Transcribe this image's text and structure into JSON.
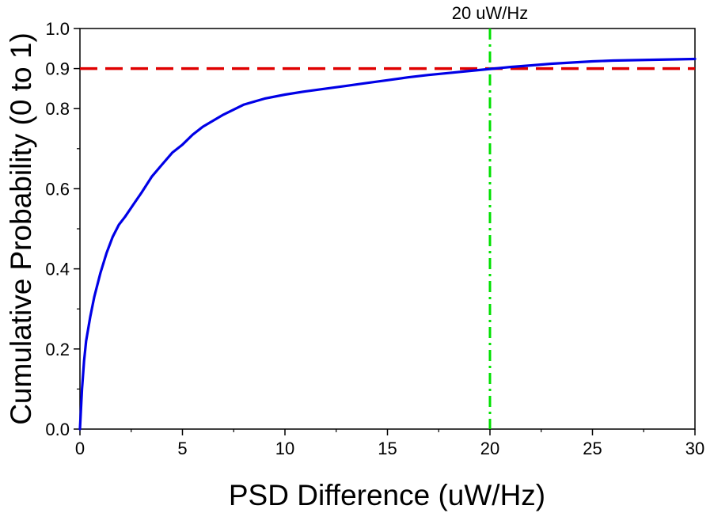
{
  "chart_data": {
    "type": "line",
    "title": "",
    "xlabel": "PSD Difference (uW/Hz)",
    "ylabel": "Cumulative Probability (0 to 1)",
    "xlim": [
      0,
      30
    ],
    "ylim": [
      0.0,
      1.0
    ],
    "x_ticks": [
      0,
      5,
      10,
      15,
      20,
      25,
      30
    ],
    "x_tick_labels": [
      "0",
      "5",
      "10",
      "15",
      "20",
      "25",
      "30"
    ],
    "y_ticks": [
      0.0,
      0.2,
      0.4,
      0.6,
      0.8,
      0.9,
      1.0
    ],
    "y_tick_labels": [
      "0.0",
      "0.2",
      "0.4",
      "0.6",
      "0.8",
      "0.9",
      "1.0"
    ],
    "grid": false,
    "series": [
      {
        "name": "Cumulative Probability",
        "color": "#0000e6",
        "x": [
          0,
          0.1,
          0.2,
          0.3,
          0.5,
          0.7,
          1.0,
          1.3,
          1.6,
          1.9,
          2.2,
          2.6,
          3.0,
          3.5,
          4.0,
          4.5,
          5.0,
          5.5,
          6.0,
          7.0,
          8.0,
          9.0,
          10.0,
          11.0,
          12.0,
          13.0,
          14.0,
          15.0,
          16.0,
          17.0,
          18.0,
          19.0,
          20.0,
          21.0,
          22.0,
          23.0,
          24.0,
          25.0,
          26.0,
          27.0,
          28.0,
          29.0,
          30.0
        ],
        "y": [
          0.0,
          0.1,
          0.17,
          0.22,
          0.28,
          0.33,
          0.39,
          0.44,
          0.48,
          0.51,
          0.53,
          0.56,
          0.59,
          0.63,
          0.66,
          0.69,
          0.71,
          0.735,
          0.755,
          0.785,
          0.81,
          0.825,
          0.835,
          0.843,
          0.85,
          0.857,
          0.864,
          0.871,
          0.878,
          0.884,
          0.889,
          0.894,
          0.899,
          0.904,
          0.908,
          0.912,
          0.915,
          0.918,
          0.92,
          0.921,
          0.922,
          0.923,
          0.924
        ]
      }
    ],
    "reference_lines": [
      {
        "orientation": "horizontal",
        "value": 0.9,
        "color": "#e00000",
        "style": "dashed"
      },
      {
        "orientation": "vertical",
        "value": 20,
        "color": "#00e000",
        "style": "dash-dot",
        "label": "20 uW/Hz"
      }
    ]
  }
}
